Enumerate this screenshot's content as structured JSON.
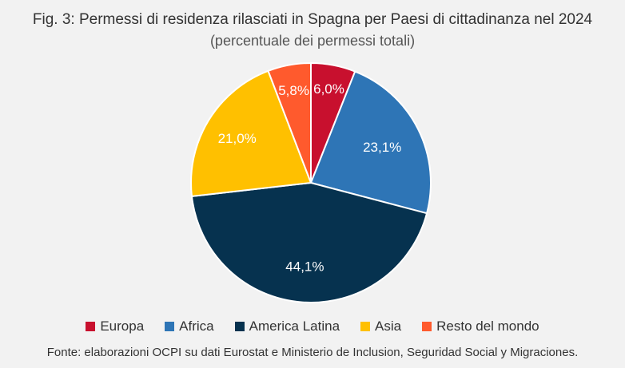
{
  "chart_data": {
    "type": "pie",
    "title": "Fig. 3: Permessi di residenza rilasciati in Spagna per Paesi di cittadinanza nel 2024",
    "subtitle": "(percentuale dei permessi totali)",
    "categories": [
      "Europa",
      "Africa",
      "America Latina",
      "Asia",
      "Resto del mondo"
    ],
    "values": [
      6.0,
      23.1,
      44.1,
      21.0,
      5.8
    ],
    "value_labels": [
      "6,0%",
      "23,1%",
      "44,1%",
      "21,0%",
      "5,8%"
    ],
    "colors": [
      "#c8102e",
      "#2e75b6",
      "#06324f",
      "#ffc000",
      "#ff5a2d"
    ],
    "legend_position": "bottom",
    "start_angle": "top, clockwise"
  },
  "legend": {
    "items": [
      {
        "label": "Europa",
        "color": "#c8102e"
      },
      {
        "label": "Africa",
        "color": "#2e75b6"
      },
      {
        "label": "America Latina",
        "color": "#06324f"
      },
      {
        "label": "Asia",
        "color": "#ffc000"
      },
      {
        "label": "Resto del mondo",
        "color": "#ff5a2d"
      }
    ]
  },
  "source": "Fonte: elaborazioni OCPI su dati Eurostat e Ministerio de Inclusion, Seguridad Social y Migraciones."
}
